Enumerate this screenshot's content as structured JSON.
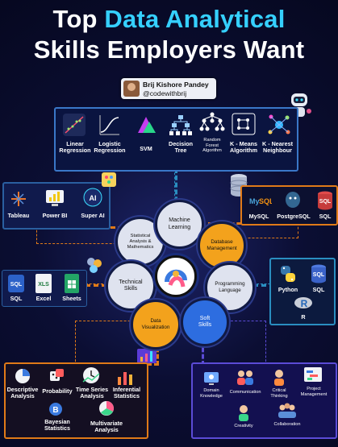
{
  "header": {
    "title_line1_prefix": "Top ",
    "title_line1_highlight": "Data Analytical",
    "title_line2": "Skills Employers Want"
  },
  "author": {
    "name": "Brij Kishore Pandey",
    "handle": "@codewithbrij"
  },
  "machine_learning": {
    "items": [
      {
        "label": "Linear\nRegression",
        "icon": "scatter-line-icon"
      },
      {
        "label": "Logistic\nRegression",
        "icon": "s-curve-icon"
      },
      {
        "label": "SVM",
        "icon": "svm-icon"
      },
      {
        "label": "Decision\nTree",
        "icon": "tree-icon"
      },
      {
        "label": "Random\nForest\nAlgorithm",
        "icon": "forest-icon"
      },
      {
        "label": "K - Means\nAlgorithm",
        "icon": "cluster-icon"
      },
      {
        "label": "K - Nearest\nNeighbour",
        "icon": "network-icon"
      }
    ]
  },
  "tools": {
    "items": [
      {
        "label": "Tableau",
        "icon": "tableau-icon"
      },
      {
        "label": "Power BI",
        "icon": "powerbi-icon"
      },
      {
        "label": "Super AI",
        "icon": "ai-icon"
      }
    ]
  },
  "databases": {
    "items": [
      {
        "label": "MySQL",
        "icon": "mysql-icon"
      },
      {
        "label": "PostgreSQL",
        "icon": "postgresql-icon"
      },
      {
        "label": "SQL",
        "icon": "sql-icon"
      }
    ]
  },
  "technical": {
    "items": [
      {
        "label": "SQL",
        "icon": "sql-icon"
      },
      {
        "label": "Excel",
        "icon": "excel-icon"
      },
      {
        "label": "Sheets",
        "icon": "sheets-icon"
      }
    ]
  },
  "programming": {
    "items": [
      {
        "label": "Python",
        "icon": "python-icon"
      },
      {
        "label": "SQL",
        "icon": "sql-icon"
      },
      {
        "label": "R",
        "icon": "r-icon"
      }
    ]
  },
  "visualization": {
    "items": [
      {
        "label": "Descriptive\nAnalysis"
      },
      {
        "label": "Probability"
      },
      {
        "label": "Time Series\nAnalysis"
      },
      {
        "label": "Inferential\nStatistics"
      },
      {
        "label": "Bayesian\nStatistics"
      },
      {
        "label": "Multivariate\nAnalysis"
      }
    ]
  },
  "soft": {
    "items": [
      {
        "label": "Domain\nKnowledge"
      },
      {
        "label": "Communication"
      },
      {
        "label": "Critical\nThinking"
      },
      {
        "label": "Project\nManagement"
      },
      {
        "label": "Creativity"
      },
      {
        "label": "Collaboration"
      }
    ]
  },
  "hubs": {
    "machine_learning": "Machine\nLearning",
    "statistical": "Statistical\nAnalysis &\nMathematics",
    "database": "Database\nManagement",
    "technical": "Technical\nSkills",
    "programming": "Programming\nLanguage",
    "data_viz": "Data\nVisualization",
    "soft": "Soft\nSkills"
  },
  "colors": {
    "accent": "#35d0ff",
    "orange": "#f3a21c",
    "blue": "#2d6de0"
  }
}
